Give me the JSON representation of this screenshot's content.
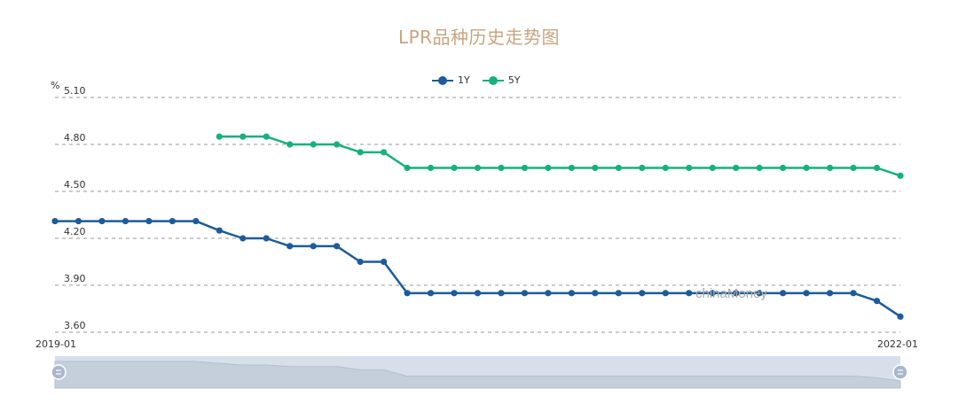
{
  "chart_data": {
    "type": "line",
    "title": "LPR品种历史走势图",
    "ylabel": "%",
    "ylim": [
      3.6,
      5.1
    ],
    "yticks": [
      "3.60",
      "3.90",
      "4.20",
      "4.50",
      "4.80",
      "5.10"
    ],
    "x_start_label": "2019-01",
    "x_end_label": "2022-01",
    "grid": true,
    "legend_position": "top-center",
    "series": [
      {
        "name": "1Y",
        "color": "#1d5b99",
        "values": [
          4.31,
          4.31,
          4.31,
          4.31,
          4.31,
          4.31,
          4.31,
          4.25,
          4.2,
          4.2,
          4.15,
          4.15,
          4.15,
          4.05,
          4.05,
          3.85,
          3.85,
          3.85,
          3.85,
          3.85,
          3.85,
          3.85,
          3.85,
          3.85,
          3.85,
          3.85,
          3.85,
          3.85,
          3.85,
          3.85,
          3.85,
          3.85,
          3.85,
          3.85,
          3.85,
          3.8,
          3.7
        ]
      },
      {
        "name": "5Y",
        "color": "#17b07d",
        "values": [
          null,
          null,
          null,
          null,
          null,
          null,
          null,
          4.85,
          4.85,
          4.85,
          4.8,
          4.8,
          4.8,
          4.75,
          4.75,
          4.65,
          4.65,
          4.65,
          4.65,
          4.65,
          4.65,
          4.65,
          4.65,
          4.65,
          4.65,
          4.65,
          4.65,
          4.65,
          4.65,
          4.65,
          4.65,
          4.65,
          4.65,
          4.65,
          4.65,
          4.65,
          4.6
        ]
      }
    ]
  },
  "watermark": "chinaMoney",
  "slider_color": "#d6dfea"
}
